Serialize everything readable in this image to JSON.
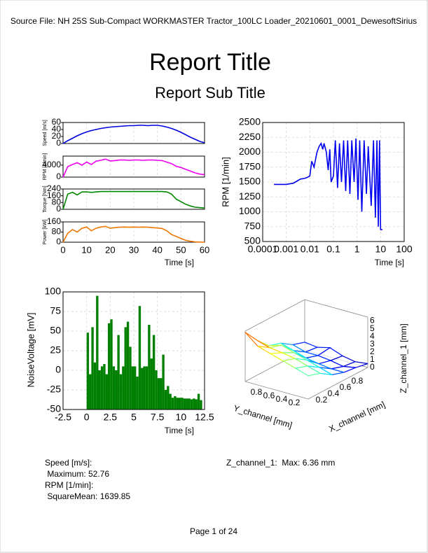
{
  "header": {
    "source": "Source File: NH 25S Sub-Compact WORKMASTER Tractor_100LC Loader_20210601_0001_DewesoftSirius",
    "title": "Report Title",
    "subtitle": "Report Sub Title"
  },
  "chart_data": [
    {
      "type": "multi-panel",
      "xlabel": "Time [s]",
      "xlim": [
        0,
        60
      ],
      "xticks": [
        0,
        10,
        20,
        30,
        40,
        50,
        60
      ],
      "grid": true,
      "x": [
        0,
        2,
        4,
        6,
        8,
        10,
        12,
        14,
        16,
        18,
        20,
        22,
        24,
        26,
        28,
        30,
        32,
        34,
        36,
        38,
        40,
        42,
        44,
        46,
        48,
        50,
        52,
        54,
        56,
        58,
        60
      ],
      "panels": [
        {
          "ylabel": "Speed [m/s]",
          "color": "#0000dd",
          "ylim": [
            0,
            60
          ],
          "yticks": [
            0,
            20,
            40,
            60
          ],
          "values": [
            0,
            8,
            15,
            22,
            28,
            33,
            37,
            40,
            43,
            45,
            47,
            48,
            49,
            50,
            51,
            51,
            52,
            52,
            51,
            52,
            52,
            50,
            47,
            43,
            38,
            32,
            25,
            18,
            12,
            6,
            2
          ]
        },
        {
          "ylabel": "RPM [1/min]",
          "color": "#ee00ee",
          "ylim": [
            0,
            7000
          ],
          "yticks": [
            0,
            4000
          ],
          "values": [
            0,
            3500,
            4200,
            4800,
            4000,
            5000,
            4200,
            5300,
            5600,
            6000,
            5400,
            5500,
            5700,
            5700,
            5600,
            5700,
            5700,
            5600,
            5700,
            5700,
            5600,
            5500,
            5000,
            4500,
            3600,
            3200,
            2600,
            2000,
            1400,
            1000,
            800
          ]
        },
        {
          "ylabel": "Torque [Nm]",
          "color": "#008800",
          "ylim": [
            0,
            240
          ],
          "yticks": [
            0,
            80,
            160,
            240
          ],
          "values": [
            0,
            180,
            200,
            170,
            205,
            205,
            200,
            205,
            210,
            210,
            210,
            210,
            210,
            210,
            210,
            210,
            210,
            210,
            210,
            210,
            210,
            210,
            205,
            180,
            120,
            90,
            60,
            40,
            25,
            20,
            15
          ]
        },
        {
          "ylabel": "Power [kW]",
          "color": "#ee7700",
          "ylim": [
            0,
            160
          ],
          "yticks": [
            0,
            80,
            160
          ],
          "values": [
            0,
            70,
            100,
            80,
            110,
            120,
            90,
            110,
            120,
            125,
            110,
            115,
            118,
            120,
            118,
            120,
            118,
            120,
            118,
            115,
            112,
            108,
            90,
            60,
            45,
            30,
            15,
            8,
            3,
            1,
            0
          ]
        }
      ]
    },
    {
      "type": "line",
      "xscale": "log",
      "xlabel": "Time [s]",
      "ylabel": "RPM [1/min]",
      "color": "#0000ee",
      "grid": true,
      "xlim": [
        0.0001,
        100
      ],
      "xticks": [
        0.0001,
        0.001,
        0.01,
        0.1,
        1,
        10,
        100
      ],
      "ylim": [
        500,
        2500
      ],
      "yticks": [
        500,
        750,
        1000,
        1250,
        1500,
        1750,
        2000,
        2250,
        2500
      ],
      "x": [
        0.0003,
        0.001,
        0.002,
        0.004,
        0.006,
        0.008,
        0.01,
        0.012,
        0.015,
        0.02,
        0.025,
        0.03,
        0.035,
        0.04,
        0.05,
        0.06,
        0.07,
        0.08,
        0.1,
        0.12,
        0.15,
        0.18,
        0.22,
        0.27,
        0.33,
        0.4,
        0.5,
        0.6,
        0.75,
        0.9,
        1.1,
        1.3,
        1.6,
        2,
        2.5,
        3,
        4,
        5,
        6,
        7,
        8,
        9,
        10,
        12
      ],
      "values": [
        1460,
        1460,
        1480,
        1550,
        1560,
        1580,
        1600,
        1850,
        1750,
        2000,
        2100,
        2150,
        2050,
        2150,
        2000,
        1700,
        2050,
        1500,
        1600,
        2200,
        1400,
        2150,
        1500,
        2200,
        1350,
        2200,
        1300,
        2200,
        1500,
        2230,
        1200,
        2200,
        1000,
        2200,
        1300,
        2100,
        1100,
        2200,
        900,
        2200,
        750,
        2200,
        700,
        700
      ]
    },
    {
      "type": "bar",
      "xlabel": "Time [s]",
      "ylabel": "NoiseVoltage [mV]",
      "color": "#008000",
      "grid": true,
      "xlim": [
        -2.5,
        12.5
      ],
      "xticks": [
        -2.5,
        0,
        2.5,
        5,
        7.5,
        10,
        12.5
      ],
      "ylim": [
        -50,
        100
      ],
      "yticks": [
        -50,
        -25,
        0,
        25,
        50,
        75,
        100
      ],
      "x": [
        0,
        0.25,
        0.5,
        0.75,
        1,
        1.25,
        1.5,
        1.75,
        2,
        2.25,
        2.5,
        2.75,
        3,
        3.25,
        3.5,
        3.75,
        4,
        4.25,
        4.5,
        4.75,
        5,
        5.25,
        5.5,
        5.75,
        6,
        6.25,
        6.5,
        6.75,
        7,
        7.25,
        7.5,
        7.75,
        8,
        8.25,
        8.5,
        8.75,
        9,
        9.25,
        9.5,
        9.75,
        10,
        10.25,
        10.5,
        10.75,
        11,
        11.25,
        11.5,
        11.75,
        12
      ],
      "values": [
        48,
        -5,
        55,
        10,
        95,
        0,
        5,
        8,
        -5,
        60,
        65,
        5,
        0,
        45,
        -5,
        5,
        55,
        62,
        30,
        5,
        5,
        -8,
        82,
        3,
        5,
        5,
        58,
        15,
        45,
        0,
        -10,
        -10,
        20,
        -25,
        -20,
        -30,
        -35,
        -33,
        -35,
        -35,
        -35,
        -36,
        -36,
        -36,
        -37,
        -36,
        -37,
        -30,
        -38
      ]
    },
    {
      "type": "surface",
      "xlabel": "X_channel [mm]",
      "ylabel": "Y_channel [mm]",
      "zlabel": "Z_channel_1 [mm]",
      "xlim": [
        0,
        1
      ],
      "ylim": [
        0,
        1
      ],
      "zlim": [
        0,
        6.5
      ],
      "xticks": [
        0.2,
        0.4,
        0.6,
        0.8
      ],
      "yticks": [
        0.2,
        0.4,
        0.6,
        0.8
      ],
      "zticks": [
        0,
        1,
        2,
        3,
        4,
        5,
        6
      ],
      "x": [
        0,
        0.2,
        0.4,
        0.6,
        0.8,
        1
      ],
      "y": [
        0,
        0.2,
        0.4,
        0.6,
        0.8,
        1
      ],
      "z": [
        [
          3.0,
          2.5,
          1.5,
          1.0,
          0.8,
          0.5
        ],
        [
          3.5,
          3.0,
          2.0,
          1.0,
          0.5,
          0.3
        ],
        [
          4.0,
          3.5,
          2.5,
          1.2,
          0.8,
          0.6
        ],
        [
          4.5,
          3.8,
          3.0,
          1.5,
          1.0,
          1.2
        ],
        [
          5.0,
          4.0,
          3.5,
          2.0,
          1.0,
          0.8
        ],
        [
          6.36,
          4.5,
          3.0,
          2.5,
          1.5,
          1.0
        ]
      ]
    }
  ],
  "statistics": {
    "left": [
      "Speed [m/s]:",
      " Maximum: 52.76",
      "RPM [1/min]:",
      " SquareMean: 1639.85"
    ],
    "right": [
      "Z_channel_1:  Max: 6.36 mm"
    ]
  },
  "footer": "Page 1 of 24"
}
